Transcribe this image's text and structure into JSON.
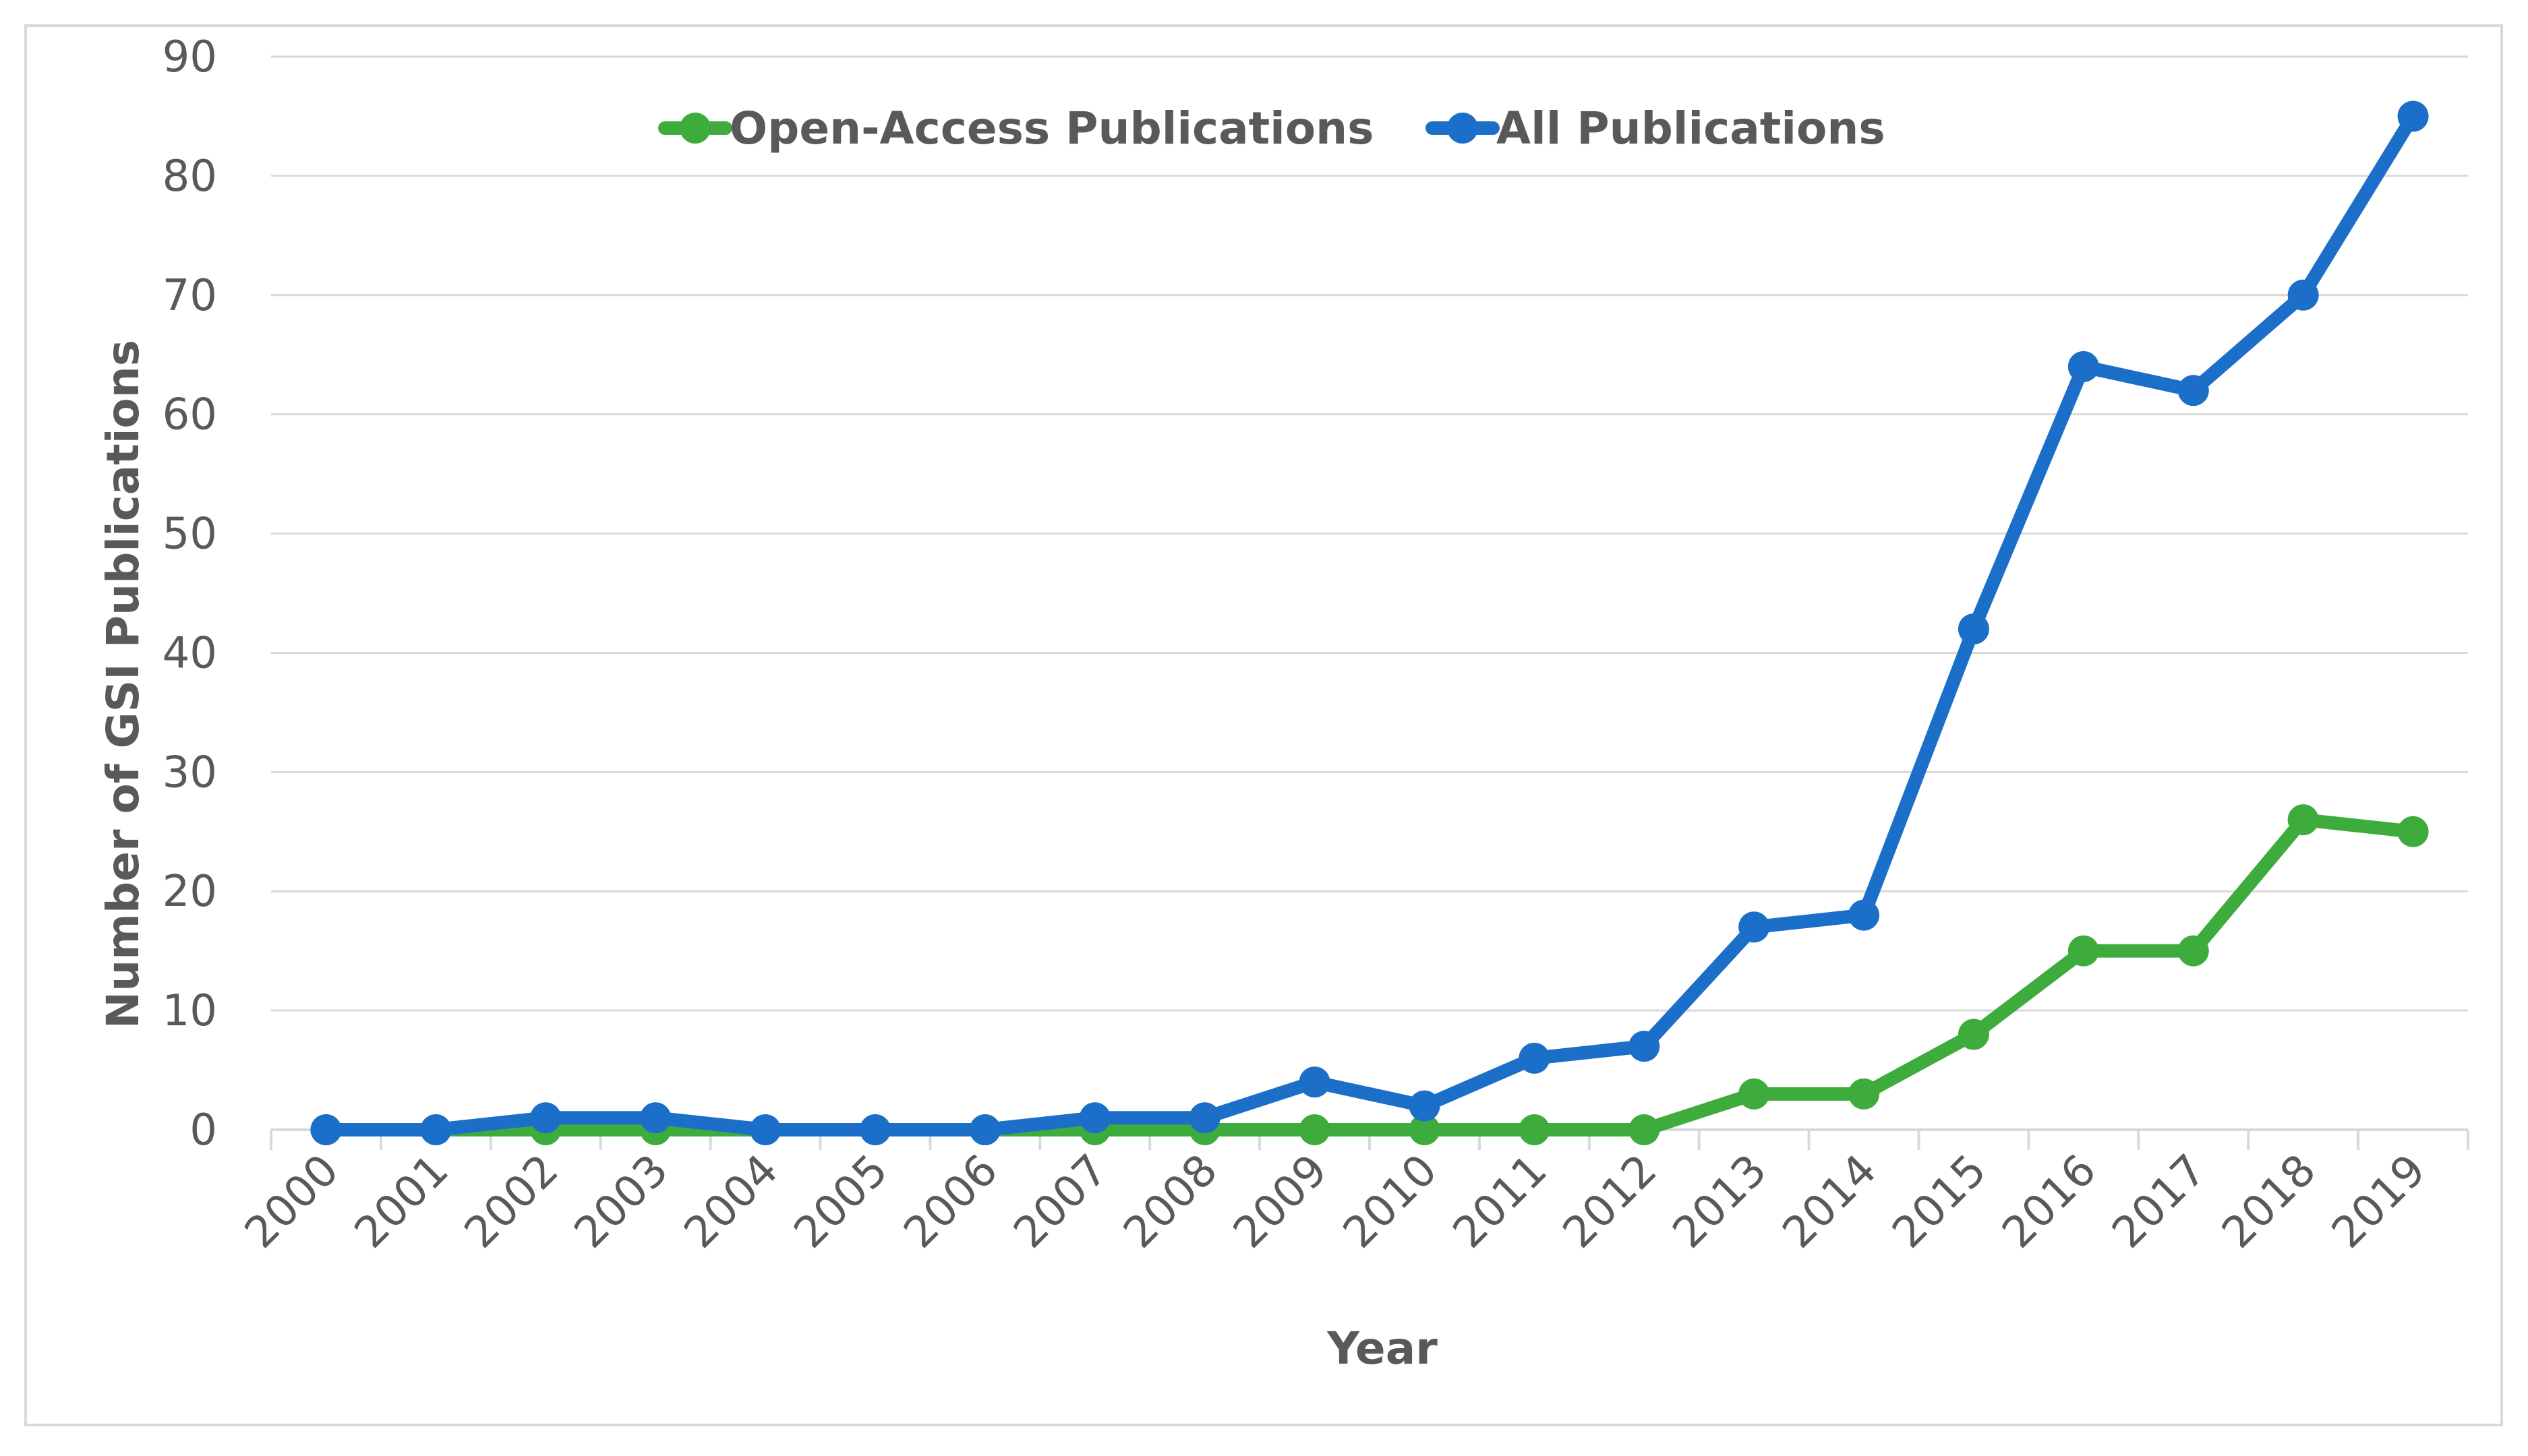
{
  "chart_data": {
    "type": "line",
    "title": "",
    "xlabel": "Year",
    "ylabel": "Number of GSI Publications",
    "categories": [
      "2000",
      "2001",
      "2002",
      "2003",
      "2004",
      "2005",
      "2006",
      "2007",
      "2008",
      "2009",
      "2010",
      "2011",
      "2012",
      "2013",
      "2014",
      "2015",
      "2016",
      "2017",
      "2018",
      "2019"
    ],
    "ylim": [
      0,
      90
    ],
    "yticks": [
      "0",
      "10",
      "20",
      "30",
      "40",
      "50",
      "60",
      "70",
      "80",
      "90"
    ],
    "grid": true,
    "legend_position": "top",
    "series": [
      {
        "name": "Open-Access Publications",
        "color": "#3eac3c",
        "values": [
          0,
          0,
          0,
          0,
          0,
          0,
          0,
          0,
          0,
          0,
          0,
          0,
          0,
          3,
          3,
          8,
          15,
          15,
          26,
          25
        ]
      },
      {
        "name": "All Publications",
        "color": "#1b6fc9",
        "values": [
          0,
          0,
          1,
          1,
          0,
          0,
          0,
          1,
          1,
          4,
          2,
          6,
          7,
          17,
          18,
          42,
          64,
          62,
          70,
          85
        ]
      }
    ]
  }
}
